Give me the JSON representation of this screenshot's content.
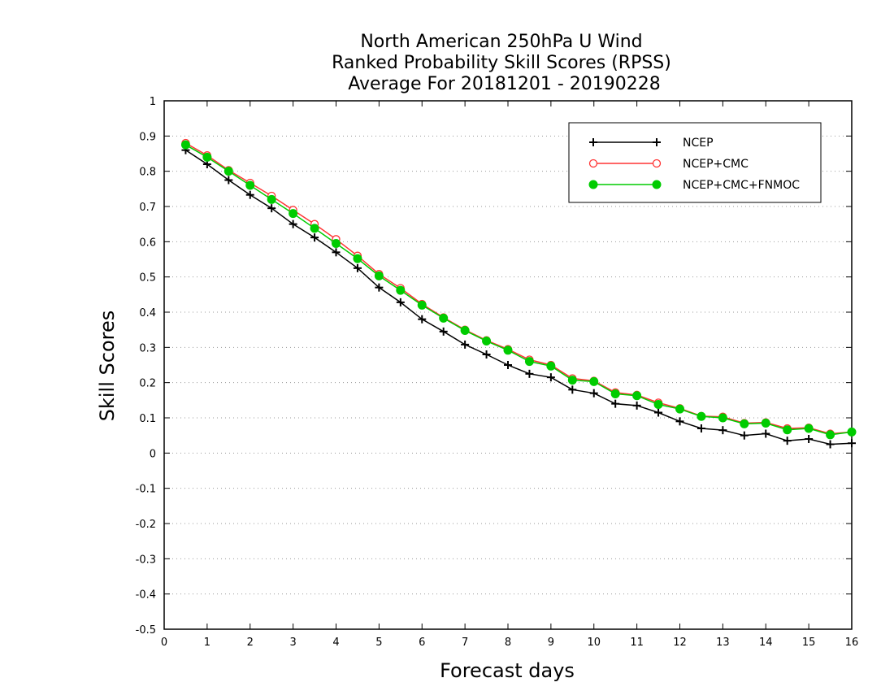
{
  "chart_data": {
    "type": "line",
    "title": [
      "North American 250hPa U Wind",
      "Ranked Probability Skill Scores (RPSS)",
      " Average For 20181201 - 20190228"
    ],
    "xlabel": "Forecast days",
    "ylabel": "Skill Scores",
    "xlim": [
      0,
      16
    ],
    "ylim": [
      -0.5,
      1
    ],
    "xticks": [
      0,
      1,
      2,
      3,
      4,
      5,
      6,
      7,
      8,
      9,
      10,
      11,
      12,
      13,
      14,
      15,
      16
    ],
    "yticks": [
      -0.5,
      -0.4,
      -0.3,
      -0.2,
      -0.1,
      0,
      0.1,
      0.2,
      0.3,
      0.4,
      0.5,
      0.6,
      0.7,
      0.8,
      0.9,
      1
    ],
    "ytick_labels": [
      "-0.5",
      "-0.4",
      "-0.3",
      "-0.2",
      "-0.1",
      "0",
      "0.1",
      "0.2",
      "0.3",
      "0.4",
      "0.5",
      "0.6",
      "0.7",
      "0.8",
      "0.9",
      "1"
    ],
    "grid": "horizontal dotted",
    "legend_position": "top-right",
    "x": [
      0.5,
      1,
      1.5,
      2,
      2.5,
      3,
      3.5,
      4,
      4.5,
      5,
      5.5,
      6,
      6.5,
      7,
      7.5,
      8,
      8.5,
      9,
      9.5,
      10,
      10.5,
      11,
      11.5,
      12,
      12.5,
      13,
      13.5,
      14,
      14.5,
      15,
      15.5,
      16
    ],
    "series": [
      {
        "name": "NCEP",
        "color": "#000000",
        "marker": "plus",
        "values": [
          0.86,
          0.82,
          0.775,
          0.733,
          0.695,
          0.65,
          0.612,
          0.57,
          0.525,
          0.47,
          0.428,
          0.38,
          0.345,
          0.308,
          0.28,
          0.25,
          0.225,
          0.215,
          0.18,
          0.17,
          0.14,
          0.135,
          0.115,
          0.09,
          0.07,
          0.065,
          0.05,
          0.055,
          0.035,
          0.04,
          0.025,
          0.028
        ]
      },
      {
        "name": "NCEP+CMC",
        "color": "#ff3333",
        "marker": "open-circle",
        "values": [
          0.88,
          0.845,
          0.803,
          0.767,
          0.73,
          0.69,
          0.65,
          0.607,
          0.56,
          0.508,
          0.468,
          0.423,
          0.385,
          0.35,
          0.32,
          0.295,
          0.265,
          0.25,
          0.212,
          0.205,
          0.172,
          0.165,
          0.143,
          0.127,
          0.105,
          0.103,
          0.085,
          0.087,
          0.07,
          0.072,
          0.055,
          0.06
        ]
      },
      {
        "name": "NCEP+CMC+FNMOC",
        "color": "#00cc00",
        "marker": "filled-circle",
        "values": [
          0.875,
          0.84,
          0.8,
          0.76,
          0.72,
          0.68,
          0.638,
          0.595,
          0.552,
          0.503,
          0.462,
          0.42,
          0.383,
          0.348,
          0.318,
          0.292,
          0.26,
          0.247,
          0.207,
          0.203,
          0.168,
          0.163,
          0.138,
          0.125,
          0.104,
          0.1,
          0.083,
          0.085,
          0.066,
          0.07,
          0.052,
          0.06
        ]
      }
    ]
  }
}
